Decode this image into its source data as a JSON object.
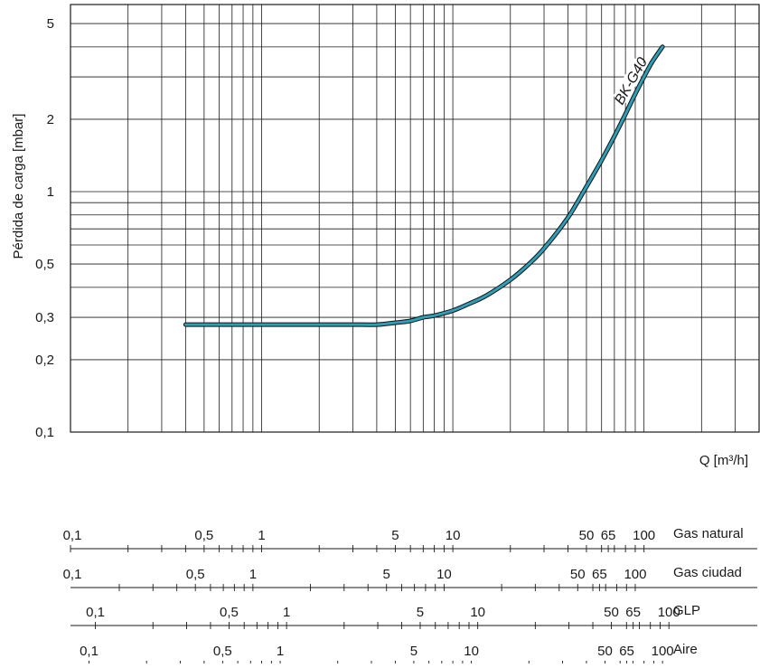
{
  "chart_data": {
    "type": "line",
    "title": "",
    "xlabel": "Q [m³/h]",
    "ylabel": "Pérdida de carga [mbar]",
    "x_scale": "log",
    "y_scale": "log",
    "grid": true,
    "xlim": [
      0.1,
      400
    ],
    "ylim": [
      0.1,
      6
    ],
    "y_ticks": [
      {
        "value": 5,
        "label": "5"
      },
      {
        "value": 2,
        "label": "2"
      },
      {
        "value": 1,
        "label": "1"
      },
      {
        "value": 0.5,
        "label": "0,5"
      },
      {
        "value": 0.3,
        "label": "0,3"
      },
      {
        "value": 0.2,
        "label": "0,2"
      },
      {
        "value": 0.1,
        "label": "0,1"
      }
    ],
    "series": [
      {
        "name": "BK-G40",
        "color": "#2e9fb8",
        "x": [
          0.4,
          0.7,
          1,
          2,
          3,
          4,
          5,
          6,
          7,
          8,
          10,
          12,
          15,
          20,
          25,
          30,
          40,
          50,
          60,
          70,
          80,
          90,
          100,
          110,
          125
        ],
        "y": [
          0.28,
          0.28,
          0.28,
          0.28,
          0.28,
          0.28,
          0.285,
          0.29,
          0.3,
          0.305,
          0.32,
          0.34,
          0.37,
          0.43,
          0.5,
          0.58,
          0.78,
          1.05,
          1.35,
          1.7,
          2.1,
          2.55,
          3.0,
          3.45,
          4.0
        ]
      }
    ],
    "gas_scales": [
      {
        "name": "Gas natural",
        "factor": 1.0,
        "labels": [
          {
            "value": 0.1,
            "label": "0,1"
          },
          {
            "value": 0.5,
            "label": "0,5"
          },
          {
            "value": 1,
            "label": "1"
          },
          {
            "value": 5,
            "label": "5"
          },
          {
            "value": 10,
            "label": "10"
          },
          {
            "value": 50,
            "label": "50"
          },
          {
            "value": 65,
            "label": "65"
          },
          {
            "value": 100,
            "label": "100"
          }
        ]
      },
      {
        "name": "Gas ciudad",
        "factor": 0.9,
        "labels": [
          {
            "value": 0.1,
            "label": "0,1"
          },
          {
            "value": 0.5,
            "label": "0,5"
          },
          {
            "value": 1,
            "label": "1"
          },
          {
            "value": 5,
            "label": "5"
          },
          {
            "value": 10,
            "label": "10"
          },
          {
            "value": 50,
            "label": "50"
          },
          {
            "value": 65,
            "label": "65"
          },
          {
            "value": 100,
            "label": "100"
          }
        ]
      },
      {
        "name": "GLP",
        "factor": 1.35,
        "labels": [
          {
            "value": 0.1,
            "label": "0,1"
          },
          {
            "value": 0.5,
            "label": "0,5"
          },
          {
            "value": 1,
            "label": "1"
          },
          {
            "value": 5,
            "label": "5"
          },
          {
            "value": 10,
            "label": "10"
          },
          {
            "value": 50,
            "label": "50"
          },
          {
            "value": 65,
            "label": "65"
          },
          {
            "value": 100,
            "label": "100"
          }
        ]
      },
      {
        "name": "Aire",
        "factor": 1.25,
        "labels": [
          {
            "value": 0.1,
            "label": "0,1"
          },
          {
            "value": 0.5,
            "label": "0,5"
          },
          {
            "value": 1,
            "label": "1"
          },
          {
            "value": 5,
            "label": "5"
          },
          {
            "value": 10,
            "label": "10"
          },
          {
            "value": 50,
            "label": "50"
          },
          {
            "value": 65,
            "label": "65"
          },
          {
            "value": 100,
            "label": "100"
          }
        ]
      }
    ]
  }
}
